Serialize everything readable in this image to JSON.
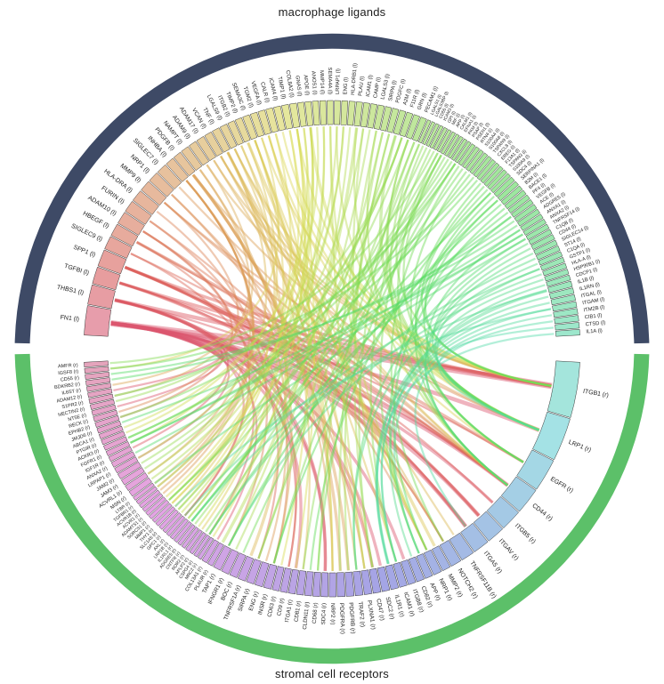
{
  "titles": {
    "top": "macrophage ligands",
    "bottom": "stromal cell receptors"
  },
  "style": {
    "ligand_arc_color": "#3e4a66",
    "receptor_arc_color": "#5cc069",
    "label_color": "#222222",
    "segment_stroke": "#3a3a3a",
    "background": "#ffffff"
  },
  "chart_data": {
    "type": "chord",
    "title": "macrophage ligand - stromal cell receptor interaction chord diagram",
    "groups": [
      {
        "label": "macrophage ligands",
        "suffix": " (l)",
        "arc_color": "#3e4a66",
        "position": "top"
      },
      {
        "label": "stromal cell receptors",
        "suffix": " (r)",
        "arc_color": "#5cc069",
        "position": "bottom"
      }
    ],
    "ligands": {
      "names": [
        "FN1",
        "THBS1",
        "TGFBI",
        "SPP1",
        "SIGLEC9",
        "HBEGF",
        "ADAM10",
        "FURIN",
        "HLA-DRA",
        "MMP9",
        "NRP1",
        "SIGLEC7",
        "INHBA",
        "PDGFB",
        "NAMPT",
        "ADAM9",
        "ADAM17",
        "VCAN",
        "TNF",
        "LGALS9",
        "ITGB2",
        "TIMP2",
        "SEMA3C",
        "TGM2",
        "VEGFA",
        "CALR",
        "ICAM4",
        "TIMP1",
        "COL8A2",
        "GNAS",
        "APOE",
        "ANOS1",
        "MMP14",
        "SEMA4A",
        "LRPAP1",
        "ENG",
        "HLA-DRB1",
        "PLAU",
        "ICAM1",
        "CAMP",
        "LGALS3",
        "SIRPA",
        "PDGFC",
        "A2M",
        "F11R",
        "GRN",
        "PECAM1",
        "LGALS1",
        "LGALS3BP",
        "CD55",
        "ICAM3",
        "GPI",
        "MIF",
        "APP",
        "CALM1",
        "EFNA1",
        "PKM",
        "PSAP",
        "PSEN1",
        "RTN4",
        "S100A4",
        "S100A8",
        "TSPAN9",
        "CXCL8",
        "EREG",
        "F13A1",
        "TSPAN3",
        "S100A9",
        "SDC4",
        "SERPINA1",
        "B2M",
        "BACE1",
        "PF4",
        "VEGFB",
        "ACE",
        "ADGRE5",
        "ANXA1",
        "ANXA2",
        "TNFRSF14",
        "C1QB",
        "CD44",
        "SIGLEC14",
        "ST14",
        "C1QA",
        "GSTP1",
        "HLA-A",
        "HSP90B1",
        "CDCP1",
        "IL1B",
        "IL1RN",
        "ITGAL",
        "ITGAM",
        "ITM2B",
        "CIB1",
        "CTSD",
        "IL1A"
      ],
      "sizes": [
        4.2,
        2.9,
        2.5,
        2.5,
        2.0,
        1.9,
        1.9,
        1.8,
        1.8,
        1.7,
        1.6,
        1.6,
        1.35,
        1.3,
        1.3,
        1.25,
        1.25,
        1.2,
        1.2,
        1.15,
        1.1,
        1.1,
        1.1,
        1.1,
        1.1,
        1.1,
        1.1,
        1.1,
        1.1,
        1.0,
        1.0,
        1.0,
        1.0,
        1.0,
        1.0,
        1.0,
        1.0,
        1.0,
        1.0,
        1.0,
        1.0,
        1.0,
        1.0,
        1.0,
        1.0,
        1.0,
        1.0,
        0.62,
        0.62,
        0.62,
        0.62,
        0.62,
        0.62,
        0.62,
        0.62,
        0.62,
        0.62,
        0.62,
        0.7,
        0.7,
        0.7,
        0.7,
        0.7,
        0.7,
        0.7,
        0.7,
        0.7,
        0.7,
        0.8,
        0.8,
        0.8,
        0.8,
        0.8,
        0.8,
        0.8,
        0.8,
        0.8,
        0.8,
        0.8,
        0.8,
        0.85,
        0.85,
        0.85,
        0.85,
        0.85,
        0.85,
        0.85,
        0.85,
        0.95,
        0.95,
        0.95,
        0.95,
        0.95,
        0.95,
        0.95,
        0.95
      ]
    },
    "receptors": {
      "names": [
        "AMFR",
        "IGSF8",
        "CD55",
        "BDKRB2",
        "IL6ST",
        "ADAM12",
        "S1PR2",
        "NECTIN2",
        "NT5E",
        "RECK",
        "EPHB2",
        "JMJD6",
        "ABCA1",
        "PTGIR",
        "ACKR3",
        "FGFR1",
        "IGF1R",
        "ANXA2",
        "LRPAP1",
        "JAM2",
        "JAM3",
        "ACVRL1",
        "MSN",
        "LTBR",
        "TGFBR1",
        "ACVR1B",
        "ACVR1",
        "ADAMTS1",
        "SORCS1",
        "MMP1",
        "THY1",
        "SLC1A5",
        "GPC1",
        "AXL",
        "LRP1B",
        "IL1RL1",
        "ADGRE5",
        "CNTFR",
        "ROR2",
        "APLP2",
        "CSPG4",
        "MRC2",
        "COL13A1",
        "PLAUR",
        "TAP1",
        "IFNGR1",
        "BOC",
        "TNFRSF1A",
        "SIRPA",
        "ENG",
        "INSR",
        "CD63",
        "CD9",
        "ITGA1",
        "CD81",
        "CLDN11",
        "CD68",
        "SDC4",
        "NRP2",
        "PDGFRA",
        "PDGFRB",
        "TRAF2",
        "PLXNA1",
        "CD47",
        "SDC2",
        "IL1R1",
        "ICAM1",
        "ITGB8",
        "CD82",
        "APP",
        "NRP1",
        "MMP2",
        "NOTCH2",
        "TNFRSF11B",
        "ITGA5",
        "ITGAV",
        "ITGB5",
        "CD44",
        "EGFR",
        "LRP1",
        "ITGB1"
      ],
      "sizes": [
        0.75,
        0.75,
        0.75,
        0.75,
        0.75,
        0.75,
        0.75,
        0.75,
        0.75,
        0.75,
        0.75,
        0.75,
        0.75,
        0.75,
        0.75,
        0.75,
        0.75,
        0.8,
        0.8,
        0.85,
        0.85,
        0.85,
        0.85,
        0.6,
        0.6,
        0.6,
        0.6,
        0.6,
        0.6,
        0.6,
        0.6,
        0.6,
        0.6,
        0.6,
        0.6,
        0.6,
        0.6,
        0.6,
        0.6,
        0.6,
        0.6,
        0.6,
        0.8,
        0.8,
        1.1,
        1.1,
        1.1,
        1.1,
        1.1,
        1.1,
        1.1,
        1.0,
        1.0,
        1.0,
        1.0,
        1.0,
        1.0,
        1.0,
        1.0,
        1.1,
        1.1,
        1.1,
        1.1,
        1.1,
        1.1,
        1.1,
        1.1,
        1.1,
        1.1,
        1.1,
        1.2,
        1.2,
        1.5,
        1.8,
        2.2,
        2.4,
        2.8,
        3.4,
        4.2,
        5.5,
        7.0
      ]
    },
    "links": [
      [
        0,
        80,
        5
      ],
      [
        0,
        79,
        3
      ],
      [
        0,
        77,
        3
      ],
      [
        0,
        76,
        2
      ],
      [
        0,
        75,
        3
      ],
      [
        0,
        74,
        3
      ],
      [
        0,
        67,
        2
      ],
      [
        0,
        64,
        2
      ],
      [
        0,
        57,
        2
      ],
      [
        0,
        53,
        2
      ],
      [
        0,
        42,
        1
      ],
      [
        0,
        33,
        1
      ],
      [
        0,
        18,
        1
      ],
      [
        0,
        8,
        1
      ],
      [
        0,
        5,
        1
      ],
      [
        1,
        80,
        3
      ],
      [
        1,
        63,
        2
      ],
      [
        1,
        57,
        2
      ],
      [
        1,
        52,
        1
      ],
      [
        1,
        16,
        1
      ],
      [
        1,
        40,
        1
      ],
      [
        1,
        77,
        1
      ],
      [
        2,
        80,
        2
      ],
      [
        2,
        74,
        2
      ],
      [
        2,
        75,
        1
      ],
      [
        2,
        78,
        1
      ],
      [
        3,
        80,
        2
      ],
      [
        3,
        77,
        2
      ],
      [
        3,
        75,
        2
      ],
      [
        3,
        74,
        1
      ],
      [
        3,
        76,
        1
      ],
      [
        4,
        77,
        1
      ],
      [
        4,
        48,
        1
      ],
      [
        5,
        78,
        2
      ],
      [
        5,
        77,
        1
      ],
      [
        5,
        52,
        1
      ],
      [
        6,
        72,
        1
      ],
      [
        6,
        10,
        1
      ],
      [
        6,
        33,
        1
      ],
      [
        7,
        50,
        1
      ],
      [
        7,
        72,
        1
      ],
      [
        8,
        44,
        1
      ],
      [
        9,
        79,
        1
      ],
      [
        9,
        77,
        1
      ],
      [
        9,
        9,
        1
      ],
      [
        10,
        62,
        1
      ],
      [
        10,
        70,
        1
      ],
      [
        11,
        77,
        1
      ],
      [
        12,
        24,
        1
      ],
      [
        12,
        25,
        1
      ],
      [
        12,
        26,
        1
      ],
      [
        12,
        49,
        1
      ],
      [
        12,
        21,
        1
      ],
      [
        13,
        59,
        2
      ],
      [
        13,
        60,
        2
      ],
      [
        13,
        79,
        1
      ],
      [
        13,
        58,
        1
      ],
      [
        14,
        50,
        1
      ],
      [
        14,
        4,
        1
      ],
      [
        15,
        80,
        1
      ],
      [
        15,
        6,
        1
      ],
      [
        16,
        72,
        1
      ],
      [
        16,
        80,
        1
      ],
      [
        17,
        80,
        1
      ],
      [
        17,
        77,
        1
      ],
      [
        17,
        63,
        1
      ],
      [
        18,
        47,
        2
      ],
      [
        18,
        73,
        1
      ],
      [
        18,
        23,
        1
      ],
      [
        18,
        61,
        1
      ],
      [
        19,
        77,
        1
      ],
      [
        19,
        54,
        1
      ],
      [
        19,
        80,
        1
      ],
      [
        20,
        66,
        1
      ],
      [
        20,
        30,
        1
      ],
      [
        21,
        71,
        2
      ],
      [
        21,
        29,
        1
      ],
      [
        22,
        62,
        1
      ],
      [
        22,
        70,
        1
      ],
      [
        22,
        58,
        1
      ],
      [
        22,
        38,
        1
      ],
      [
        23,
        80,
        1
      ],
      [
        23,
        1,
        1
      ],
      [
        24,
        70,
        1
      ],
      [
        24,
        58,
        1
      ],
      [
        24,
        78,
        1
      ],
      [
        25,
        79,
        1
      ],
      [
        25,
        31,
        1
      ],
      [
        26,
        80,
        1
      ],
      [
        27,
        51,
        1
      ],
      [
        27,
        29,
        1
      ],
      [
        28,
        80,
        1
      ],
      [
        28,
        53,
        1
      ],
      [
        28,
        41,
        1
      ],
      [
        28,
        27,
        1
      ],
      [
        29,
        13,
        1
      ],
      [
        29,
        37,
        1
      ],
      [
        30,
        79,
        2
      ],
      [
        30,
        34,
        1
      ],
      [
        30,
        12,
        1
      ],
      [
        30,
        28,
        1
      ],
      [
        31,
        15,
        1
      ],
      [
        32,
        40,
        1
      ],
      [
        32,
        32,
        1
      ],
      [
        33,
        62,
        1
      ],
      [
        33,
        70,
        1
      ],
      [
        34,
        79,
        1
      ],
      [
        34,
        18,
        1
      ],
      [
        35,
        24,
        1
      ],
      [
        35,
        21,
        1
      ],
      [
        36,
        44,
        1
      ],
      [
        37,
        43,
        2
      ],
      [
        37,
        79,
        1
      ],
      [
        38,
        22,
        1
      ],
      [
        38,
        66,
        1
      ],
      [
        39,
        45,
        1
      ],
      [
        40,
        77,
        1
      ],
      [
        40,
        56,
        1
      ],
      [
        41,
        63,
        1
      ],
      [
        41,
        48,
        1
      ],
      [
        42,
        59,
        1
      ],
      [
        42,
        60,
        1
      ],
      [
        43,
        79,
        2
      ],
      [
        43,
        34,
        1
      ],
      [
        44,
        19,
        1
      ],
      [
        44,
        20,
        1
      ],
      [
        44,
        7,
        1
      ],
      [
        45,
        78,
        1
      ],
      [
        45,
        28,
        1
      ],
      [
        45,
        79,
        1
      ],
      [
        46,
        63,
        1
      ],
      [
        46,
        48,
        1
      ],
      [
        47,
        54,
        1
      ],
      [
        47,
        77,
        1
      ],
      [
        48,
        80,
        1
      ],
      [
        49,
        36,
        1
      ],
      [
        50,
        66,
        1
      ],
      [
        51,
        0,
        1
      ],
      [
        52,
        77,
        1
      ],
      [
        52,
        31,
        1
      ],
      [
        53,
        39,
        1
      ],
      [
        53,
        69,
        1
      ],
      [
        53,
        79,
        1
      ],
      [
        54,
        50,
        1
      ],
      [
        55,
        10,
        1
      ],
      [
        56,
        14,
        1
      ],
      [
        57,
        28,
        1
      ],
      [
        57,
        6,
        1
      ],
      [
        57,
        56,
        1
      ],
      [
        58,
        72,
        1
      ],
      [
        59,
        46,
        1
      ],
      [
        60,
        78,
        1
      ],
      [
        61,
        35,
        1
      ],
      [
        62,
        1,
        1
      ],
      [
        63,
        14,
        1
      ],
      [
        64,
        78,
        1
      ],
      [
        65,
        80,
        1
      ],
      [
        66,
        55,
        1
      ],
      [
        67,
        35,
        1
      ],
      [
        67,
        77,
        1
      ],
      [
        68,
        80,
        1
      ],
      [
        69,
        79,
        1
      ],
      [
        69,
        50,
        1
      ],
      [
        70,
        44,
        1
      ],
      [
        71,
        69,
        1
      ],
      [
        72,
        40,
        1
      ],
      [
        73,
        70,
        1
      ],
      [
        73,
        15,
        1
      ],
      [
        74,
        3,
        1
      ],
      [
        75,
        2,
        1
      ],
      [
        76,
        78,
        1
      ],
      [
        76,
        15,
        1
      ],
      [
        77,
        17,
        1
      ],
      [
        77,
        11,
        1
      ],
      [
        78,
        23,
        1
      ],
      [
        78,
        61,
        1
      ],
      [
        79,
        79,
        1
      ],
      [
        80,
        77,
        1
      ],
      [
        81,
        77,
        1
      ],
      [
        82,
        40,
        1
      ],
      [
        83,
        79,
        1
      ],
      [
        84,
        61,
        1
      ],
      [
        84,
        33,
        1
      ],
      [
        85,
        44,
        1
      ],
      [
        86,
        79,
        1
      ],
      [
        87,
        68,
        1
      ],
      [
        88,
        65,
        2
      ],
      [
        88,
        35,
        1
      ],
      [
        89,
        65,
        1
      ],
      [
        90,
        66,
        1
      ],
      [
        91,
        66,
        1
      ],
      [
        91,
        30,
        1
      ],
      [
        92,
        69,
        1
      ],
      [
        93,
        74,
        1
      ],
      [
        94,
        79,
        1
      ],
      [
        95,
        65,
        1
      ]
    ],
    "layout": {
      "ligand_arc_degrees": [
        273,
        447
      ],
      "receptor_arc_degrees": [
        93,
        267
      ],
      "color_scheme": "rainbow hue around circle: pink (left ligands) -> orange/yellow (top) -> green/cyan (right) -> light blue -> periwinkle (bottom) -> purple/magenta (left receptors)"
    }
  }
}
